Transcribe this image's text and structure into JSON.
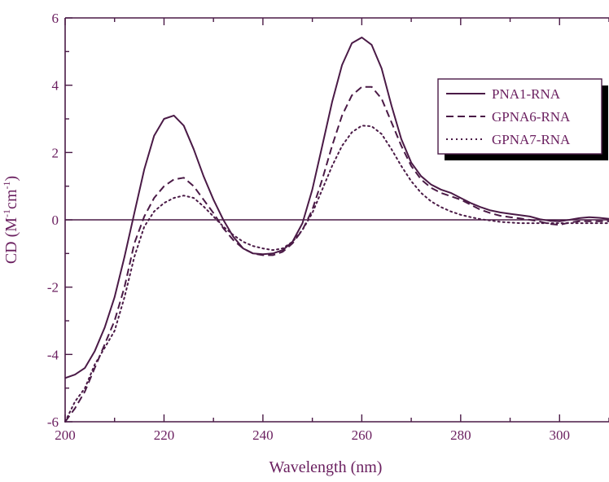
{
  "chart_data": {
    "type": "line",
    "xlabel": "Wavelength (nm)",
    "ylabel": {
      "prefix": "CD (M",
      "sup1": "-1",
      "middle": "cm",
      "sup2": "-1",
      "suffix": ")"
    },
    "xlim": [
      200,
      310
    ],
    "ylim": [
      -6,
      6
    ],
    "x_ticks": [
      200,
      220,
      240,
      260,
      280,
      300
    ],
    "y_ticks": [
      -6,
      -4,
      -2,
      0,
      2,
      4,
      6
    ],
    "grid": false,
    "legend_position": "top-right",
    "colors": {
      "axis": "#4a1a46",
      "text": "#6a1f5f"
    },
    "series": [
      {
        "name": "PNA1-RNA",
        "style": "solid",
        "x": [
          200,
          202,
          204,
          206,
          208,
          210,
          212,
          214,
          216,
          218,
          220,
          222,
          224,
          226,
          228,
          230,
          232,
          234,
          236,
          238,
          240,
          242,
          244,
          246,
          248,
          250,
          252,
          254,
          256,
          258,
          260,
          262,
          264,
          266,
          268,
          270,
          272,
          274,
          276,
          278,
          280,
          282,
          284,
          286,
          288,
          290,
          292,
          294,
          296,
          298,
          300,
          302,
          304,
          306,
          308,
          310
        ],
        "y": [
          -4.7,
          -4.6,
          -4.4,
          -3.9,
          -3.2,
          -2.3,
          -1.1,
          0.2,
          1.5,
          2.5,
          3.0,
          3.1,
          2.8,
          2.1,
          1.3,
          0.6,
          0.0,
          -0.5,
          -0.85,
          -1.0,
          -1.02,
          -1.0,
          -0.9,
          -0.65,
          -0.1,
          0.9,
          2.2,
          3.5,
          4.6,
          5.25,
          5.42,
          5.2,
          4.5,
          3.4,
          2.4,
          1.7,
          1.3,
          1.05,
          0.9,
          0.8,
          0.65,
          0.5,
          0.38,
          0.28,
          0.22,
          0.18,
          0.14,
          0.1,
          0.02,
          -0.03,
          -0.04,
          0.0,
          0.05,
          0.08,
          0.06,
          0.03
        ]
      },
      {
        "name": "GPNA6-RNA",
        "style": "dashed",
        "x": [
          200,
          202,
          204,
          206,
          208,
          210,
          212,
          214,
          216,
          218,
          220,
          222,
          224,
          226,
          228,
          230,
          232,
          234,
          236,
          238,
          240,
          242,
          244,
          246,
          248,
          250,
          252,
          254,
          256,
          258,
          260,
          262,
          264,
          266,
          268,
          270,
          272,
          274,
          276,
          278,
          280,
          282,
          284,
          286,
          288,
          290,
          292,
          294,
          296,
          298,
          300,
          302,
          304,
          306,
          308,
          310
        ],
        "y": [
          -6.0,
          -5.6,
          -5.1,
          -4.4,
          -3.7,
          -3.0,
          -2.0,
          -0.7,
          0.1,
          0.65,
          1.0,
          1.2,
          1.25,
          1.0,
          0.6,
          0.2,
          -0.25,
          -0.6,
          -0.85,
          -1.0,
          -1.05,
          -1.05,
          -0.95,
          -0.7,
          -0.3,
          0.3,
          1.2,
          2.2,
          3.1,
          3.7,
          3.95,
          3.95,
          3.6,
          2.9,
          2.2,
          1.6,
          1.2,
          0.95,
          0.8,
          0.7,
          0.6,
          0.45,
          0.3,
          0.2,
          0.12,
          0.08,
          0.04,
          0.0,
          -0.05,
          -0.12,
          -0.15,
          -0.08,
          -0.04,
          -0.04,
          -0.04,
          -0.04
        ]
      },
      {
        "name": "GPNA7-RNA",
        "style": "dotted",
        "x": [
          200,
          202,
          204,
          206,
          208,
          210,
          212,
          214,
          216,
          218,
          220,
          222,
          224,
          226,
          228,
          230,
          232,
          234,
          236,
          238,
          240,
          242,
          244,
          246,
          248,
          250,
          252,
          254,
          256,
          258,
          260,
          262,
          264,
          266,
          268,
          270,
          272,
          274,
          276,
          278,
          280,
          282,
          284,
          286,
          288,
          290,
          292,
          294,
          296,
          298,
          300,
          302,
          304,
          306,
          308,
          310
        ],
        "y": [
          -6.0,
          -5.4,
          -5.0,
          -4.3,
          -3.8,
          -3.3,
          -2.3,
          -1.1,
          -0.2,
          0.25,
          0.5,
          0.65,
          0.72,
          0.65,
          0.4,
          0.1,
          -0.2,
          -0.45,
          -0.65,
          -0.78,
          -0.85,
          -0.9,
          -0.85,
          -0.65,
          -0.3,
          0.2,
          0.9,
          1.6,
          2.2,
          2.6,
          2.8,
          2.78,
          2.55,
          2.1,
          1.6,
          1.15,
          0.8,
          0.55,
          0.38,
          0.25,
          0.15,
          0.08,
          0.02,
          -0.02,
          -0.06,
          -0.08,
          -0.1,
          -0.1,
          -0.1,
          -0.1,
          -0.1,
          -0.1,
          -0.1,
          -0.1,
          -0.1,
          -0.1
        ]
      }
    ]
  }
}
